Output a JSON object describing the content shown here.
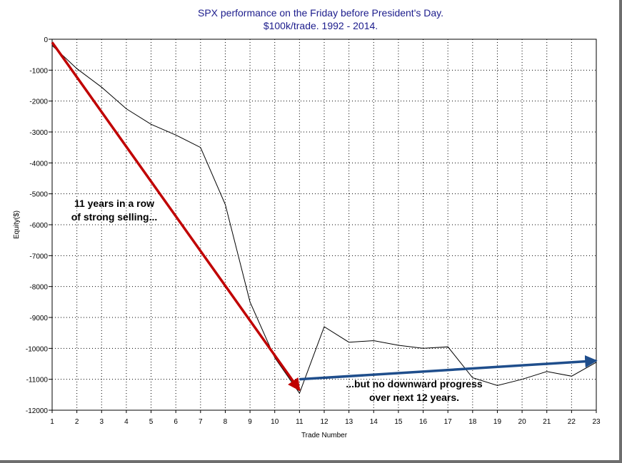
{
  "chart_data": {
    "type": "line",
    "title": "SPX performance on the Friday before President's Day.",
    "subtitle": "$100k/trade. 1992 - 2014.",
    "xlabel": "Trade Number",
    "ylabel": "Equity($)",
    "xlim": [
      1,
      23
    ],
    "ylim": [
      -12000,
      0
    ],
    "x_ticks": [
      1,
      2,
      3,
      4,
      5,
      6,
      7,
      8,
      9,
      10,
      11,
      12,
      13,
      14,
      15,
      16,
      17,
      18,
      19,
      20,
      21,
      22,
      23
    ],
    "y_ticks": [
      0,
      -1000,
      -2000,
      -3000,
      -4000,
      -5000,
      -6000,
      -7000,
      -8000,
      -9000,
      -10000,
      -11000,
      -12000
    ],
    "grid": true,
    "series": [
      {
        "x": [
          1,
          2,
          3,
          4,
          5,
          6,
          7,
          8,
          9,
          10,
          11,
          12,
          13,
          14,
          15,
          16,
          17,
          18,
          19,
          20,
          21,
          22,
          23
        ],
        "values": [
          -200,
          -950,
          -1550,
          -2250,
          -2750,
          -3100,
          -3500,
          -5350,
          -8500,
          -10300,
          -11450,
          -9300,
          -9800,
          -9750,
          -9900,
          -10000,
          -9950,
          -10950,
          -11200,
          -11000,
          -10750,
          -10900,
          -10450
        ],
        "color": "#000000"
      }
    ],
    "annotations": [
      {
        "lines": [
          "11 years in a row",
          "of strong selling..."
        ],
        "arrow": {
          "from": [
            1,
            -100
          ],
          "to": [
            11,
            -11350
          ],
          "color": "#c00000"
        }
      },
      {
        "lines": [
          "...but no downward progress",
          "over next 12 years."
        ],
        "arrow": {
          "from": [
            11,
            -11000
          ],
          "to": [
            23,
            -10400
          ],
          "color": "#1f4e8c"
        }
      }
    ]
  }
}
